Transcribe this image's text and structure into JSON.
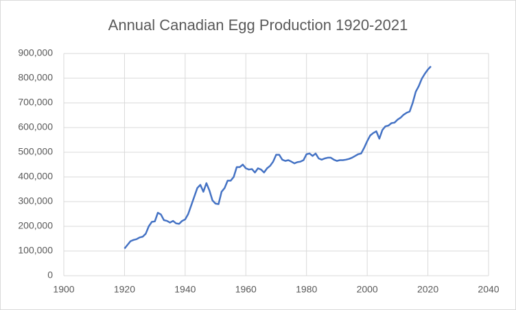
{
  "chart_data": {
    "type": "line",
    "title": "Annual Canadian Egg Production 1920-2021",
    "x": [
      1920,
      1921,
      1922,
      1923,
      1924,
      1925,
      1926,
      1927,
      1928,
      1929,
      1930,
      1931,
      1932,
      1933,
      1934,
      1935,
      1936,
      1937,
      1938,
      1939,
      1940,
      1941,
      1942,
      1943,
      1944,
      1945,
      1946,
      1947,
      1948,
      1949,
      1950,
      1951,
      1952,
      1953,
      1954,
      1955,
      1956,
      1957,
      1958,
      1959,
      1960,
      1961,
      1962,
      1963,
      1964,
      1965,
      1966,
      1967,
      1968,
      1969,
      1970,
      1971,
      1972,
      1973,
      1974,
      1975,
      1976,
      1977,
      1978,
      1979,
      1980,
      1981,
      1982,
      1983,
      1984,
      1985,
      1986,
      1987,
      1988,
      1989,
      1990,
      1991,
      1992,
      1993,
      1994,
      1995,
      1996,
      1997,
      1998,
      1999,
      2000,
      2001,
      2002,
      2003,
      2004,
      2005,
      2006,
      2007,
      2008,
      2009,
      2010,
      2011,
      2012,
      2013,
      2014,
      2015,
      2016,
      2017,
      2018,
      2019,
      2020,
      2021
    ],
    "values": [
      110000,
      125000,
      140000,
      145000,
      148000,
      155000,
      158000,
      170000,
      200000,
      218000,
      220000,
      255000,
      248000,
      225000,
      222000,
      215000,
      222000,
      212000,
      210000,
      222000,
      228000,
      250000,
      285000,
      320000,
      355000,
      368000,
      340000,
      375000,
      345000,
      305000,
      292000,
      290000,
      340000,
      355000,
      385000,
      385000,
      400000,
      440000,
      440000,
      450000,
      435000,
      430000,
      432000,
      418000,
      435000,
      430000,
      418000,
      435000,
      445000,
      462000,
      490000,
      490000,
      470000,
      465000,
      468000,
      462000,
      455000,
      460000,
      462000,
      468000,
      492000,
      495000,
      485000,
      495000,
      475000,
      470000,
      475000,
      478000,
      478000,
      470000,
      465000,
      468000,
      468000,
      470000,
      473000,
      478000,
      485000,
      492000,
      495000,
      518000,
      545000,
      568000,
      578000,
      585000,
      555000,
      590000,
      605000,
      608000,
      618000,
      620000,
      632000,
      640000,
      652000,
      660000,
      665000,
      700000,
      745000,
      768000,
      798000,
      818000,
      835000,
      848000
    ],
    "color": "#4472c4",
    "xlim": [
      1900,
      2040
    ],
    "xticks": [
      1900,
      1920,
      1940,
      1960,
      1980,
      2000,
      2020,
      2040
    ],
    "ylim": [
      0,
      900000
    ],
    "yticks": [
      0,
      {
        "value": 100000,
        "label": "100,000"
      },
      {
        "value": 200000,
        "label": "200,000"
      },
      {
        "value": 300000,
        "label": "300,000"
      },
      {
        "value": 400000,
        "label": "400,000"
      },
      {
        "value": 500000,
        "label": "500,000"
      },
      {
        "value": 600000,
        "label": "600,000"
      },
      {
        "value": 700000,
        "label": "700,000"
      },
      {
        "value": 800000,
        "label": "800,000"
      },
      {
        "value": 900000,
        "label": "900,000"
      }
    ],
    "grid": true
  }
}
